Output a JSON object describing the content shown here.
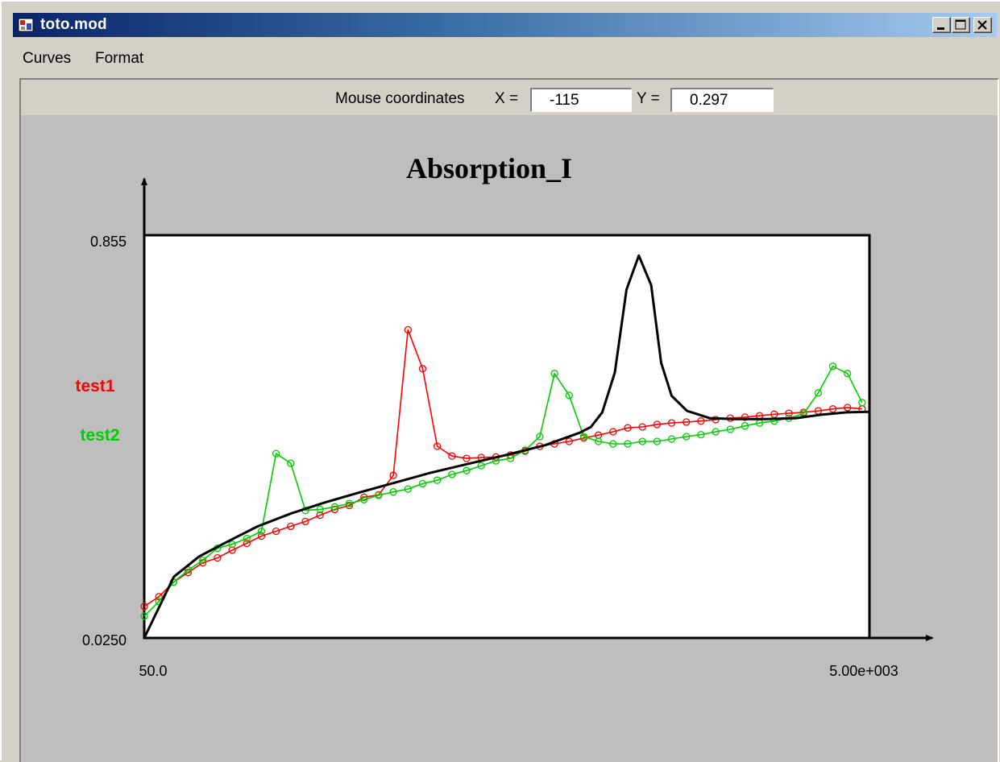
{
  "window": {
    "title": "toto.mod",
    "menu": [
      "Curves",
      "Format"
    ]
  },
  "coords": {
    "label": "Mouse coordinates",
    "x_label": "X =",
    "x_value": "-115",
    "y_label": "Y =",
    "y_value": "0.297"
  },
  "chart_data": {
    "type": "line",
    "title": "Absorption_I",
    "xlim": [
      50,
      5000
    ],
    "ylim": [
      0.025,
      0.855
    ],
    "tick_labels": {
      "x_min": "50.0",
      "x_max": "5.00e+003",
      "y_min": "0.0250",
      "y_max": "0.855"
    },
    "legend": [
      {
        "name": "test1",
        "color": "#ff0000"
      },
      {
        "name": "test2",
        "color": "#00cc00"
      }
    ],
    "series": [
      {
        "name": "",
        "color": "#000000",
        "markers": false,
        "x": [
          50,
          252,
          425,
          622,
          825,
          1056,
          1292,
          1520,
          1773,
          1999,
          2250,
          2518,
          2784,
          3023,
          3099,
          3176,
          3262,
          3342,
          3426,
          3510,
          3578,
          3650,
          3755,
          3909,
          4075,
          4295,
          4500,
          4670,
          4845,
          5000
        ],
        "y": [
          0.025,
          0.151,
          0.193,
          0.224,
          0.255,
          0.282,
          0.305,
          0.325,
          0.346,
          0.365,
          0.383,
          0.402,
          0.422,
          0.448,
          0.46,
          0.49,
          0.572,
          0.743,
          0.813,
          0.752,
          0.592,
          0.524,
          0.493,
          0.478,
          0.476,
          0.476,
          0.478,
          0.485,
          0.49,
          0.491
        ]
      },
      {
        "name": "test1",
        "color": "#ff0000",
        "markers": true,
        "x": [
          50,
          150,
          250,
          350,
          450,
          550,
          650,
          750,
          850,
          950,
          1050,
          1150,
          1250,
          1350,
          1450,
          1550,
          1650,
          1750,
          1850,
          1950,
          2050,
          2150,
          2250,
          2350,
          2450,
          2550,
          2650,
          2750,
          2850,
          2950,
          3050,
          3150,
          3250,
          3350,
          3450,
          3550,
          3650,
          3750,
          3850,
          3950,
          4050,
          4150,
          4250,
          4350,
          4450,
          4550,
          4650,
          4750,
          4850,
          4950
        ],
        "y": [
          0.09,
          0.11,
          0.14,
          0.16,
          0.18,
          0.19,
          0.206,
          0.22,
          0.235,
          0.245,
          0.255,
          0.265,
          0.278,
          0.29,
          0.298,
          0.315,
          0.32,
          0.36,
          0.66,
          0.58,
          0.42,
          0.4,
          0.395,
          0.397,
          0.398,
          0.402,
          0.41,
          0.42,
          0.425,
          0.43,
          0.437,
          0.443,
          0.45,
          0.458,
          0.46,
          0.465,
          0.468,
          0.47,
          0.472,
          0.475,
          0.478,
          0.48,
          0.483,
          0.486,
          0.488,
          0.49,
          0.493,
          0.497,
          0.5,
          0.497
        ]
      },
      {
        "name": "test2",
        "color": "#00cc00",
        "markers": true,
        "x": [
          50,
          150,
          250,
          350,
          450,
          550,
          650,
          750,
          850,
          950,
          1050,
          1150,
          1250,
          1350,
          1450,
          1550,
          1650,
          1750,
          1850,
          1950,
          2050,
          2150,
          2250,
          2350,
          2450,
          2550,
          2650,
          2750,
          2850,
          2950,
          3050,
          3150,
          3250,
          3350,
          3450,
          3550,
          3650,
          3750,
          3850,
          3950,
          4050,
          4150,
          4250,
          4350,
          4450,
          4550,
          4650,
          4750,
          4850,
          4950
        ],
        "y": [
          0.07,
          0.1,
          0.14,
          0.165,
          0.185,
          0.21,
          0.218,
          0.23,
          0.245,
          0.405,
          0.385,
          0.288,
          0.29,
          0.295,
          0.302,
          0.31,
          0.319,
          0.326,
          0.332,
          0.343,
          0.35,
          0.362,
          0.37,
          0.38,
          0.39,
          0.395,
          0.412,
          0.44,
          0.57,
          0.525,
          0.44,
          0.43,
          0.425,
          0.425,
          0.43,
          0.43,
          0.435,
          0.44,
          0.444,
          0.45,
          0.455,
          0.462,
          0.468,
          0.472,
          0.478,
          0.487,
          0.53,
          0.585,
          0.57,
          0.51
        ]
      }
    ]
  }
}
